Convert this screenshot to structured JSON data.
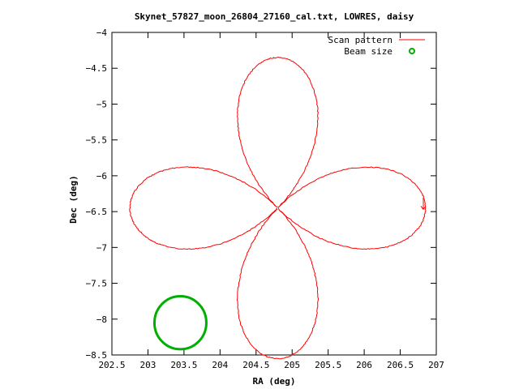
{
  "chart_data": {
    "type": "line",
    "title": "Skynet_57827_moon_26804_27160_cal.txt, LOWRES, daisy",
    "xlabel": "RA (deg)",
    "ylabel": "Dec (deg)",
    "xlim": [
      202.5,
      207
    ],
    "ylim": [
      -8.5,
      -4
    ],
    "xticks": [
      202.5,
      203,
      203.5,
      204,
      204.5,
      205,
      205.5,
      206,
      206.5,
      207
    ],
    "xtick_labels": [
      "202.5",
      "203",
      "203.5",
      "204",
      "204.5",
      "205",
      "205.5",
      "206",
      "206.5",
      "207"
    ],
    "yticks": [
      -4,
      -4.5,
      -5,
      -5.5,
      -6,
      -6.5,
      -7,
      -7.5,
      -8,
      -8.5
    ],
    "ytick_labels": [
      "-4",
      "-4.5",
      "-5",
      "-5.5",
      "-6",
      "-6.5",
      "-7",
      "-7.5",
      "-8",
      "-8.5"
    ],
    "legend_position": "top-right",
    "series": [
      {
        "name": "Scan pattern",
        "color": "#ff0000",
        "style": "line",
        "shape": "daisy",
        "center": [
          204.8,
          -6.45
        ],
        "petal_length": 2.05,
        "petal_length_y": 2.1,
        "petal_width": 0.5,
        "petal_width_y": 0.35,
        "start_point": [
          206.82,
          -6.4
        ]
      },
      {
        "name": "Beam size",
        "color": "#00b000",
        "style": "circle",
        "center": [
          203.45,
          -8.05
        ],
        "radius_x": 0.36,
        "radius_y": 0.37
      }
    ]
  }
}
